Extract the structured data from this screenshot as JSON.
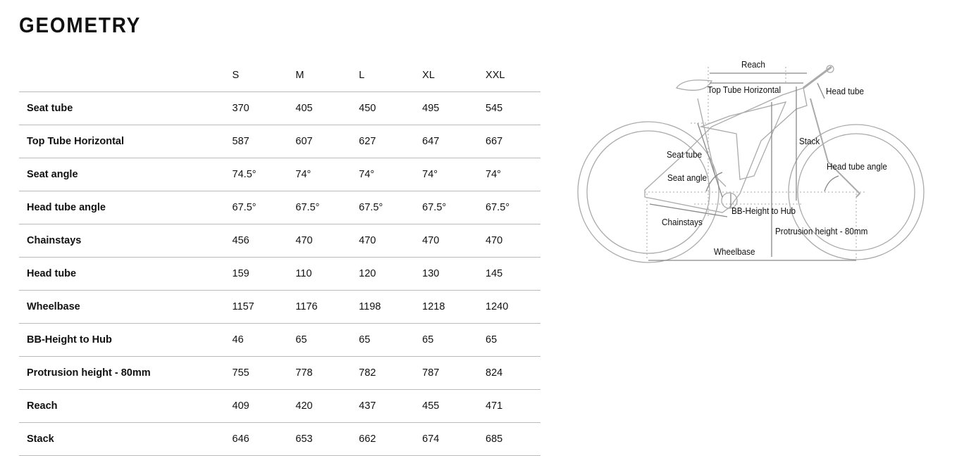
{
  "title": "GEOMETRY",
  "table": {
    "sizes": [
      "S",
      "M",
      "L",
      "XL",
      "XXL"
    ],
    "rows": [
      {
        "label": "Seat tube",
        "values": [
          "370",
          "405",
          "450",
          "495",
          "545"
        ]
      },
      {
        "label": "Top Tube Horizontal",
        "values": [
          "587",
          "607",
          "627",
          "647",
          "667"
        ]
      },
      {
        "label": "Seat angle",
        "values": [
          "74.5°",
          "74°",
          "74°",
          "74°",
          "74°"
        ]
      },
      {
        "label": "Head tube angle",
        "values": [
          "67.5°",
          "67.5°",
          "67.5°",
          "67.5°",
          "67.5°"
        ]
      },
      {
        "label": "Chainstays",
        "values": [
          "456",
          "470",
          "470",
          "470",
          "470"
        ]
      },
      {
        "label": "Head tube",
        "values": [
          "159",
          "110",
          "120",
          "130",
          "145"
        ]
      },
      {
        "label": "Wheelbase",
        "values": [
          "1157",
          "1176",
          "1198",
          "1218",
          "1240"
        ]
      },
      {
        "label": "BB-Height to Hub",
        "values": [
          "46",
          "65",
          "65",
          "65",
          "65"
        ]
      },
      {
        "label": "Protrusion height - 80mm",
        "values": [
          "755",
          "778",
          "782",
          "787",
          "824"
        ]
      },
      {
        "label": "Reach",
        "values": [
          "409",
          "420",
          "437",
          "455",
          "471"
        ]
      },
      {
        "label": "Stack",
        "values": [
          "646",
          "653",
          "662",
          "674",
          "685"
        ]
      }
    ]
  },
  "diagram": {
    "labels": {
      "reach": "Reach",
      "top_tube": "Top Tube Horizontal",
      "head_tube": "Head tube",
      "stack": "Stack",
      "seat_tube": "Seat tube",
      "head_tube_angle": "Head tube angle",
      "seat_angle": "Seat angle",
      "bb_height": "BB-Height to Hub",
      "chainstays": "Chainstays",
      "protrusion": "Protrusion height - 80mm",
      "wheelbase": "Wheelbase"
    }
  }
}
